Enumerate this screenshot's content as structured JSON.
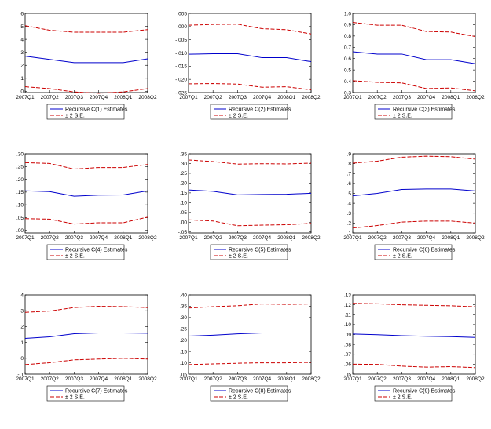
{
  "colors": {
    "estimate": "#0000cc",
    "band": "#cc0000",
    "axis": "#000000"
  },
  "legend": {
    "band_label": "± 2 S.E."
  },
  "chart_data": [
    {
      "type": "line",
      "x": [
        "2007Q1",
        "2007Q2",
        "2007Q3",
        "2007Q4",
        "2008Q1",
        "2008Q2"
      ],
      "ticks": [
        ".0",
        ".1",
        ".2",
        ".3",
        ".4",
        ".5",
        ".6"
      ],
      "ylim": [
        -0.01,
        0.6
      ],
      "legend_label": "Recursive C(1) Estimates",
      "series": [
        {
          "role": "estimate",
          "values": [
            0.27,
            0.245,
            0.22,
            0.22,
            0.22,
            0.25
          ]
        },
        {
          "role": "upper",
          "values": [
            0.505,
            0.47,
            0.455,
            0.455,
            0.455,
            0.475
          ]
        },
        {
          "role": "lower",
          "values": [
            0.035,
            0.02,
            -0.005,
            -0.015,
            -0.005,
            0.02
          ]
        }
      ]
    },
    {
      "type": "line",
      "x": [
        "2007Q1",
        "2007Q2",
        "2007Q3",
        "2007Q4",
        "2008Q1",
        "2008Q2"
      ],
      "ticks": [
        "-.025",
        "-.020",
        "-.015",
        "-.010",
        "-.005",
        ".000",
        ".005"
      ],
      "ylim": [
        -0.025,
        0.005
      ],
      "legend_label": "Recursive C(2) Estimates",
      "series": [
        {
          "role": "estimate",
          "values": [
            -0.0105,
            -0.0103,
            -0.0103,
            -0.0118,
            -0.0118,
            -0.0133
          ]
        },
        {
          "role": "upper",
          "values": [
            0.0005,
            0.0008,
            0.0009,
            -0.0008,
            -0.0012,
            -0.0028
          ]
        },
        {
          "role": "lower",
          "values": [
            -0.0217,
            -0.0216,
            -0.0218,
            -0.023,
            -0.0228,
            -0.024
          ]
        }
      ]
    },
    {
      "type": "line",
      "x": [
        "2007Q1",
        "2007Q2",
        "2007Q3",
        "2007Q4",
        "2008Q1",
        "2008Q2"
      ],
      "ticks": [
        "0.3",
        "0.4",
        "0.5",
        "0.6",
        "0.7",
        "0.8",
        "0.9",
        "1.0"
      ],
      "ylim": [
        0.3,
        1.0
      ],
      "legend_label": "Recursive C(3) Estimates",
      "series": [
        {
          "role": "estimate",
          "values": [
            0.66,
            0.64,
            0.64,
            0.59,
            0.59,
            0.555
          ]
        },
        {
          "role": "upper",
          "values": [
            0.92,
            0.895,
            0.895,
            0.84,
            0.835,
            0.795
          ]
        },
        {
          "role": "lower",
          "values": [
            0.405,
            0.39,
            0.385,
            0.335,
            0.34,
            0.315
          ]
        }
      ]
    },
    {
      "type": "line",
      "x": [
        "2007Q1",
        "2007Q2",
        "2007Q3",
        "2007Q4",
        "2008Q1",
        "2008Q2"
      ],
      "ticks": [
        ".00",
        ".05",
        ".10",
        ".15",
        ".20",
        ".25",
        ".30"
      ],
      "ylim": [
        -0.01,
        0.3
      ],
      "legend_label": "Recursive C(4) Estimates",
      "series": [
        {
          "role": "estimate",
          "values": [
            0.155,
            0.152,
            0.134,
            0.138,
            0.139,
            0.155
          ]
        },
        {
          "role": "upper",
          "values": [
            0.265,
            0.262,
            0.24,
            0.246,
            0.246,
            0.258
          ]
        },
        {
          "role": "lower",
          "values": [
            0.046,
            0.044,
            0.025,
            0.03,
            0.03,
            0.052
          ]
        }
      ]
    },
    {
      "type": "line",
      "x": [
        "2007Q1",
        "2007Q2",
        "2007Q3",
        "2007Q4",
        "2008Q1",
        "2008Q2"
      ],
      "ticks": [
        "-.05",
        ".00",
        ".05",
        ".10",
        ".15",
        ".20",
        ".25",
        ".30",
        ".35"
      ],
      "ylim": [
        -0.055,
        0.35
      ],
      "legend_label": "Recursive C(5) Estimates",
      "series": [
        {
          "role": "estimate",
          "values": [
            0.165,
            0.158,
            0.14,
            0.142,
            0.143,
            0.148
          ]
        },
        {
          "role": "upper",
          "values": [
            0.318,
            0.31,
            0.297,
            0.299,
            0.298,
            0.302
          ]
        },
        {
          "role": "lower",
          "values": [
            0.012,
            0.006,
            -0.018,
            -0.015,
            -0.013,
            -0.006
          ]
        }
      ]
    },
    {
      "type": "line",
      "x": [
        "2007Q1",
        "2007Q2",
        "2007Q3",
        "2007Q4",
        "2008Q1",
        "2008Q2"
      ],
      "ticks": [
        ".1",
        ".2",
        ".3",
        ".4",
        ".5",
        ".6",
        ".7",
        ".8",
        ".9"
      ],
      "ylim": [
        0.1,
        0.9
      ],
      "legend_label": "Recursive C(6) Estimates",
      "series": [
        {
          "role": "estimate",
          "values": [
            0.475,
            0.5,
            0.54,
            0.545,
            0.545,
            0.525
          ]
        },
        {
          "role": "upper",
          "values": [
            0.805,
            0.825,
            0.865,
            0.875,
            0.87,
            0.845
          ]
        },
        {
          "role": "lower",
          "values": [
            0.15,
            0.175,
            0.21,
            0.22,
            0.22,
            0.2
          ]
        }
      ]
    },
    {
      "type": "line",
      "x": [
        "2007Q1",
        "2007Q2",
        "2007Q3",
        "2007Q4",
        "2008Q1",
        "2008Q2"
      ],
      "ticks": [
        "-.1",
        ".0",
        ".1",
        ".2",
        ".3",
        ".4"
      ],
      "ylim": [
        -0.1,
        0.4
      ],
      "legend_label": "Recursive C(7) Estimates",
      "series": [
        {
          "role": "estimate",
          "values": [
            0.125,
            0.135,
            0.155,
            0.16,
            0.16,
            0.158
          ]
        },
        {
          "role": "upper",
          "values": [
            0.29,
            0.298,
            0.32,
            0.328,
            0.326,
            0.32
          ]
        },
        {
          "role": "lower",
          "values": [
            -0.04,
            -0.028,
            -0.01,
            -0.005,
            0.0,
            -0.005
          ]
        }
      ]
    },
    {
      "type": "line",
      "x": [
        "2007Q1",
        "2007Q2",
        "2007Q3",
        "2007Q4",
        "2008Q1",
        "2008Q2"
      ],
      "ticks": [
        ".05",
        ".10",
        ".15",
        ".20",
        ".25",
        ".30",
        ".35",
        ".40"
      ],
      "ylim": [
        0.05,
        0.4
      ],
      "legend_label": "Recursive C(8) Estimates",
      "series": [
        {
          "role": "estimate",
          "values": [
            0.218,
            0.222,
            0.228,
            0.232,
            0.232,
            0.232
          ]
        },
        {
          "role": "upper",
          "values": [
            0.342,
            0.348,
            0.352,
            0.36,
            0.358,
            0.36
          ]
        },
        {
          "role": "lower",
          "values": [
            0.092,
            0.095,
            0.098,
            0.1,
            0.1,
            0.102
          ]
        }
      ]
    },
    {
      "type": "line",
      "x": [
        "2007Q1",
        "2007Q2",
        "2007Q3",
        "2007Q4",
        "2008Q1",
        "2008Q2"
      ],
      "ticks": [
        ".05",
        ".06",
        ".07",
        ".08",
        ".09",
        ".10",
        ".11",
        ".12",
        ".13"
      ],
      "ylim": [
        0.05,
        0.13
      ],
      "legend_label": "Recursive C(9) Estimates",
      "series": [
        {
          "role": "estimate",
          "values": [
            0.0905,
            0.0898,
            0.0888,
            0.0882,
            0.0878,
            0.087
          ]
        },
        {
          "role": "upper",
          "values": [
            0.1215,
            0.121,
            0.12,
            0.1195,
            0.119,
            0.118
          ]
        },
        {
          "role": "lower",
          "values": [
            0.06,
            0.0598,
            0.058,
            0.057,
            0.0575,
            0.0565
          ]
        }
      ]
    }
  ]
}
